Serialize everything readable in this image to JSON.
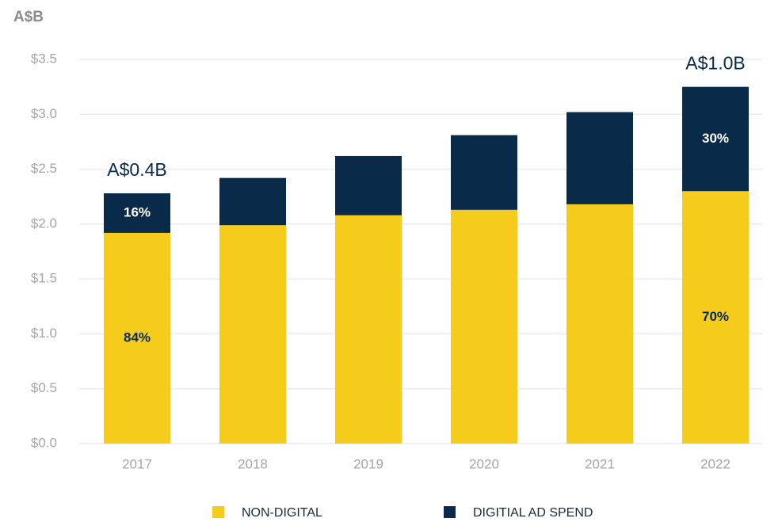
{
  "chart_data": {
    "type": "stacked_bar",
    "y_axis_label": "A$B",
    "categories": [
      "2017",
      "2018",
      "2019",
      "2020",
      "2021",
      "2022"
    ],
    "series": [
      {
        "name": "NON-DIGITAL",
        "color": "#f5cb1c",
        "values": [
          1.92,
          1.99,
          2.08,
          2.13,
          2.18,
          2.3
        ]
      },
      {
        "name": "DIGITIAL AD SPEND",
        "color": "#0a2a4a",
        "values": [
          0.36,
          0.43,
          0.54,
          0.68,
          0.84,
          0.95
        ]
      }
    ],
    "ylim": [
      0,
      3.5
    ],
    "yticks": [
      {
        "value": 0,
        "label": "$0.0"
      },
      {
        "value": 0.5,
        "label": "$0.5"
      },
      {
        "value": 1,
        "label": "$1.0"
      },
      {
        "value": 1.5,
        "label": "$1.5"
      },
      {
        "value": 2,
        "label": "$2.0"
      },
      {
        "value": 2.5,
        "label": "$2.5"
      },
      {
        "value": 3,
        "label": "$3.0"
      },
      {
        "value": 3.5,
        "label": "$3.5"
      }
    ],
    "grid": true,
    "legend": "bottom",
    "annotations": [
      {
        "text": "84%",
        "category": "2017",
        "series": "NON-DIGITAL"
      },
      {
        "text": "16%",
        "category": "2017",
        "series": "DIGITIAL AD SPEND"
      },
      {
        "text": "A$0.4B",
        "category": "2017"
      },
      {
        "text": "70%",
        "category": "2022",
        "series": "NON-DIGITAL"
      },
      {
        "text": "30%",
        "category": "2022",
        "series": "DIGITIAL AD SPEND"
      },
      {
        "text": "A$1.0B",
        "category": "2022"
      }
    ]
  }
}
